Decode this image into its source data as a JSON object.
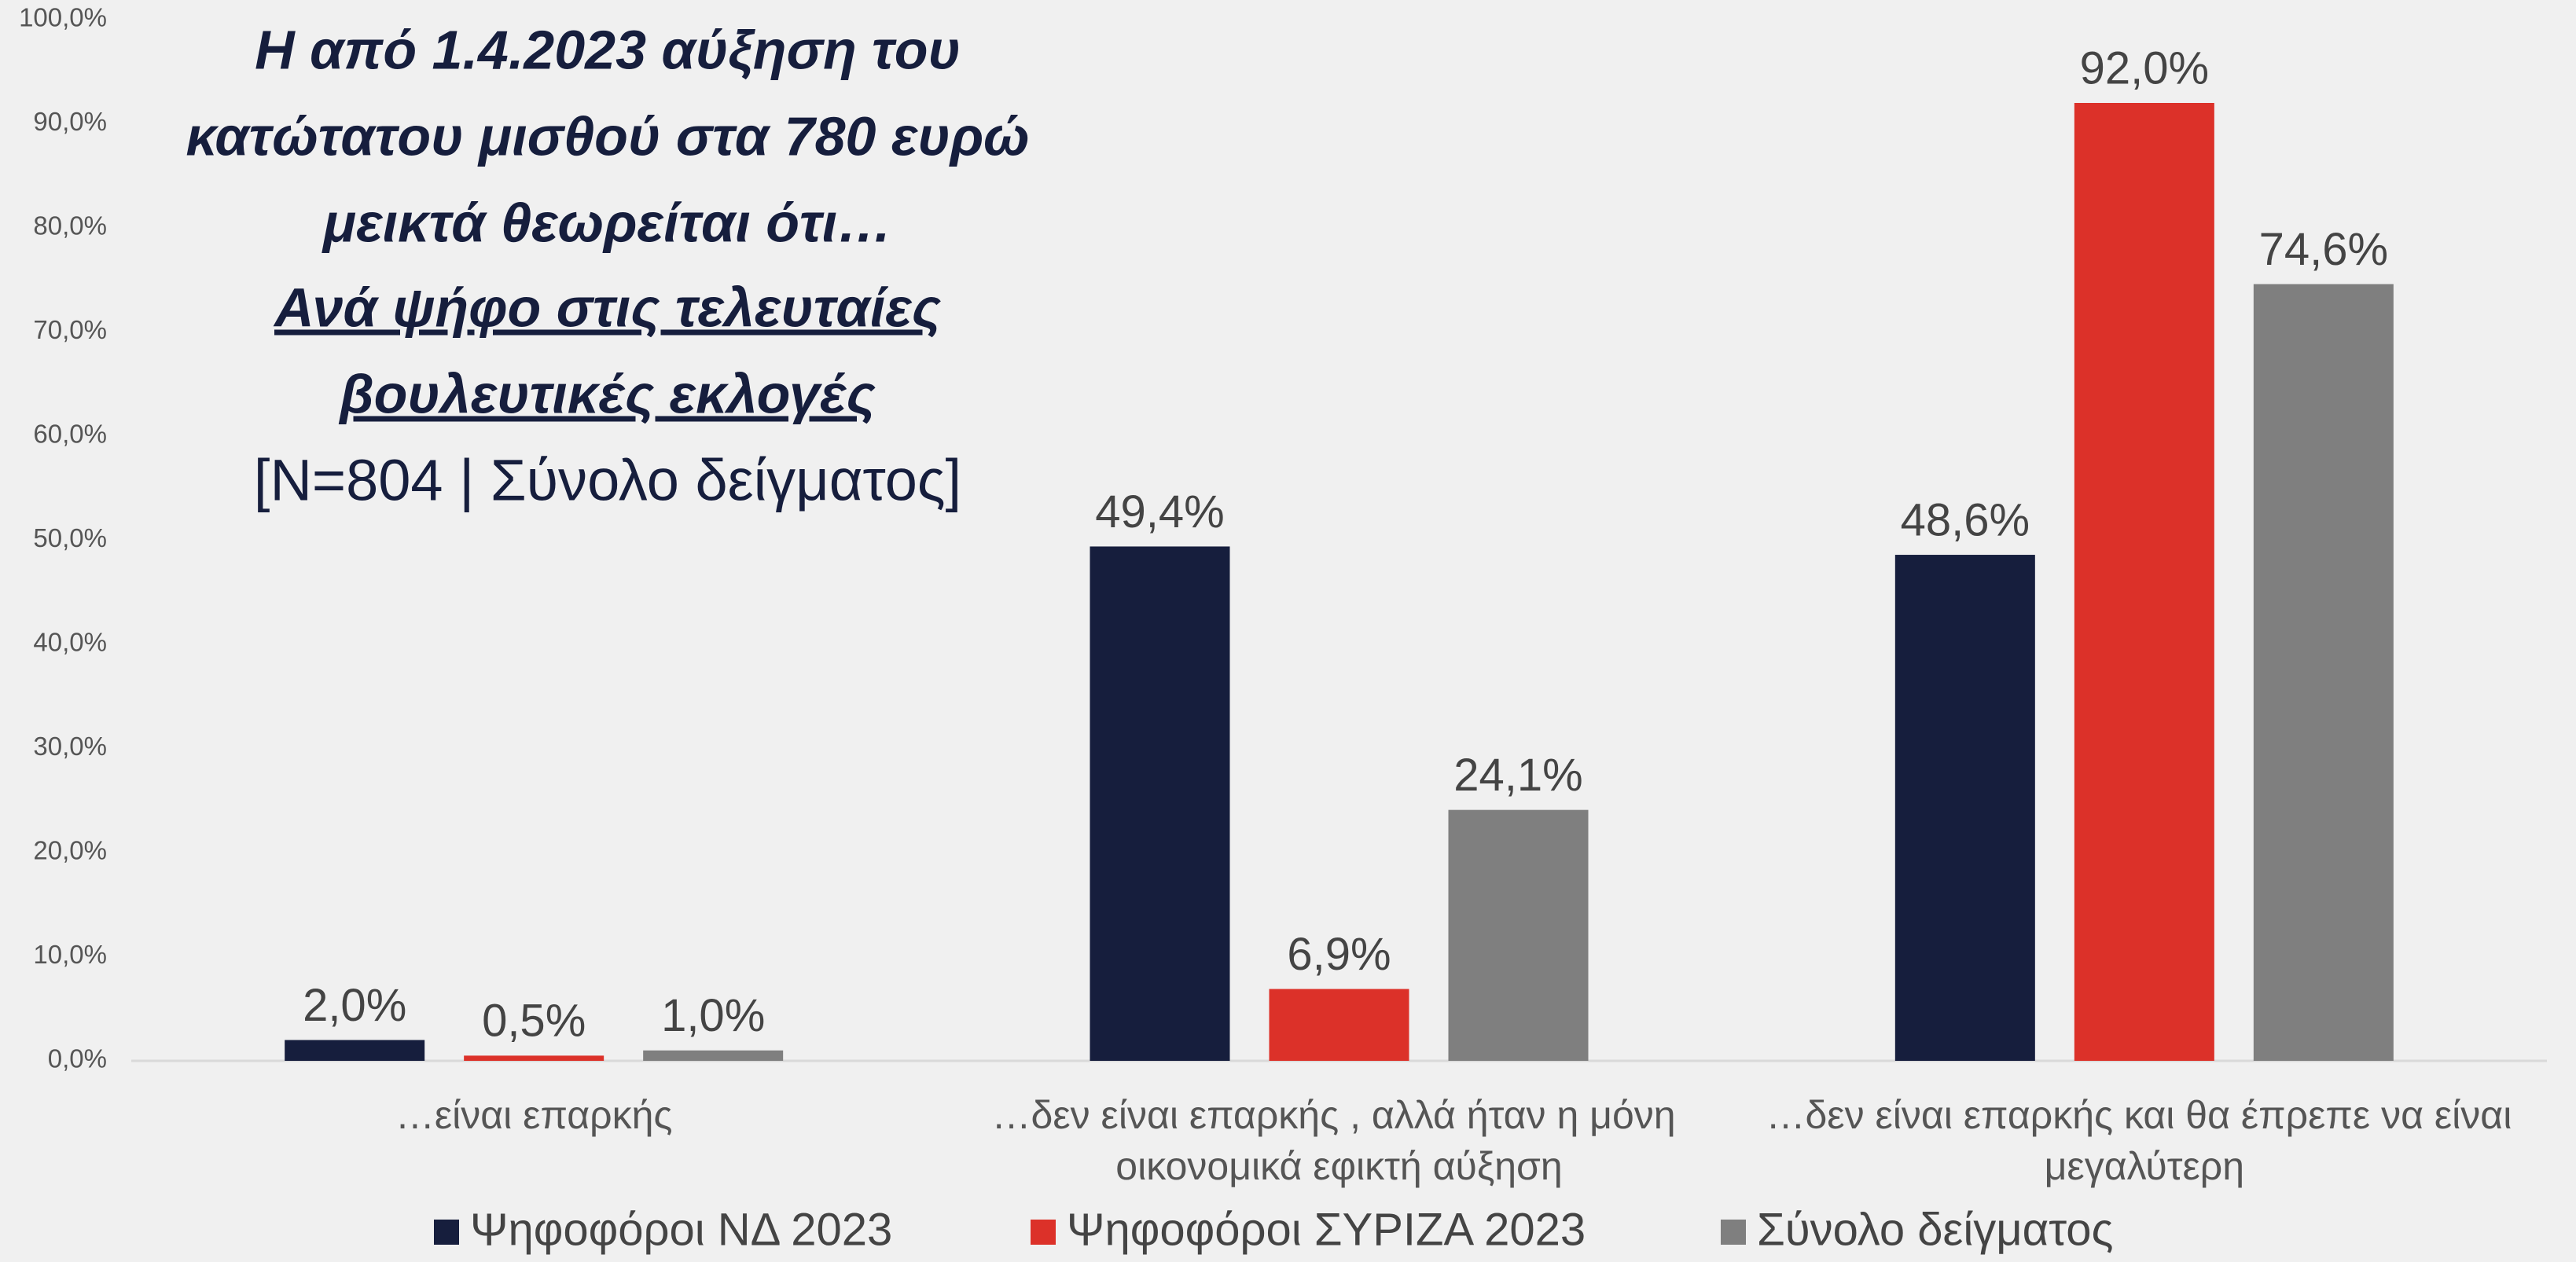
{
  "chart_data": {
    "type": "bar",
    "title": [
      "Η από 1.4.2023 αύξηση του",
      "κατώτατου μισθού στα 780 ευρώ",
      "μεικτά θεωρείται ότι…"
    ],
    "subtitle": [
      "Ανά ψήφο στις τελευταίες",
      "βουλευτικές εκλογές"
    ],
    "note": "[N=804 | Σύνολο δείγματος]",
    "categories": [
      "…είναι επαρκής",
      "…δεν είναι επαρκής , αλλά ήταν η μόνη οικονομικά εφικτή αύξηση",
      "…δεν είναι επαρκής και θα έπρεπε να είναι μεγαλύτερη"
    ],
    "series": [
      {
        "name": "Ψηφοφόροι ΝΔ 2023",
        "color": "#161e3d",
        "values": [
          2.0,
          49.4,
          48.6
        ],
        "value_labels": [
          "2,0%",
          "49,4%",
          "48,6%"
        ]
      },
      {
        "name": "Ψηφοφόροι ΣΥΡΙΖΑ 2023",
        "color": "#dc3129",
        "values": [
          0.5,
          6.9,
          92.0
        ],
        "value_labels": [
          "0,5%",
          "6,9%",
          "92,0%"
        ]
      },
      {
        "name": "Σύνολο δείγματος",
        "color": "#7f7f7f",
        "values": [
          1.0,
          24.1,
          74.6
        ],
        "value_labels": [
          "1,0%",
          "24,1%",
          "74,6%"
        ]
      }
    ],
    "ylim": [
      0,
      100
    ],
    "yticks": [
      {
        "value": 0,
        "label": "0,0%"
      },
      {
        "value": 10,
        "label": "10,0%"
      },
      {
        "value": 20,
        "label": "20,0%"
      },
      {
        "value": 30,
        "label": "30,0%"
      },
      {
        "value": 40,
        "label": "40,0%"
      },
      {
        "value": 50,
        "label": "50,0%"
      },
      {
        "value": 60,
        "label": "60,0%"
      },
      {
        "value": 70,
        "label": "70,0%"
      },
      {
        "value": 80,
        "label": "80,0%"
      },
      {
        "value": 90,
        "label": "90,0%"
      },
      {
        "value": 100,
        "label": "100,0%"
      }
    ],
    "legend": "bottom"
  }
}
